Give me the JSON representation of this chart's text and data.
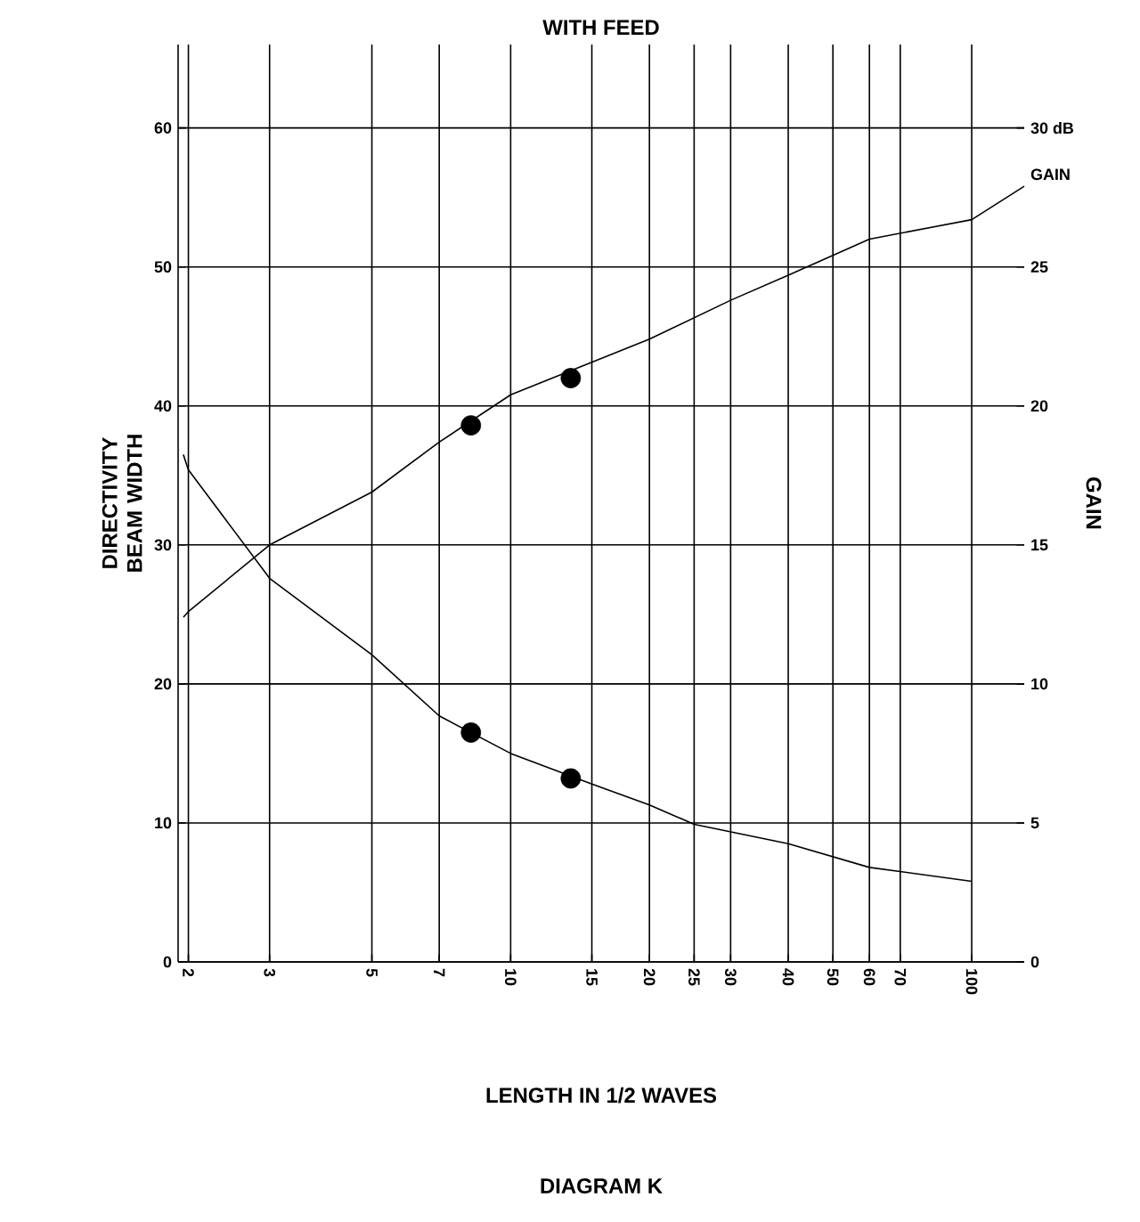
{
  "chart_data": {
    "type": "line",
    "title": "WITH FEED",
    "xlabel": "LENGTH IN 1/2 WAVES",
    "ylabel": "DIRECTIVITY BEAM WIDTH",
    "y2label": "GAIN",
    "annotations": [
      "DIAGRAM K"
    ],
    "log": "x",
    "grid": true,
    "legend": false,
    "xlim": [
      1.9,
      130
    ],
    "xticks": [
      2,
      3,
      5,
      7,
      10,
      15,
      20,
      25,
      30,
      40,
      50,
      60,
      70,
      100
    ],
    "ylim": [
      0,
      66
    ],
    "yticks": [
      0,
      10,
      20,
      30,
      40,
      50,
      60
    ],
    "y2lim": [
      0,
      33
    ],
    "y2ticks": [
      0,
      5,
      10,
      15,
      20,
      {
        "value": 30,
        "label": "30 dB"
      },
      25
    ],
    "series": [
      {
        "type": "line",
        "color": "#000000",
        "marker": "none",
        "x": [
          1.95,
          2,
          3,
          5,
          7,
          10,
          15,
          20,
          25,
          40,
          60,
          100
        ],
        "values": [
          36.5,
          35.4,
          27.6,
          22.1,
          17.7,
          15.0,
          12.8,
          11.3,
          9.9,
          8.5,
          6.8,
          5.8
        ]
      },
      {
        "type": "line",
        "name": "GAIN",
        "axis": "y2",
        "color": "#000000",
        "marker": "none",
        "x": [
          1.95,
          2,
          3,
          5,
          7,
          10,
          20,
          30,
          40,
          60,
          100,
          130
        ],
        "values": [
          12.4,
          12.6,
          15.0,
          16.9,
          18.7,
          20.4,
          22.4,
          23.8,
          24.7,
          26.0,
          26.7,
          27.9
        ]
      },
      {
        "type": "scatter",
        "color": "#000000",
        "marker": "circle",
        "x": [
          8.2,
          13.5
        ],
        "values": [
          16.5,
          13.2
        ]
      },
      {
        "type": "scatter",
        "axis": "y2",
        "color": "#000000",
        "marker": "circle",
        "x": [
          8.2,
          13.5
        ],
        "values": [
          19.3,
          21.0
        ]
      }
    ]
  }
}
